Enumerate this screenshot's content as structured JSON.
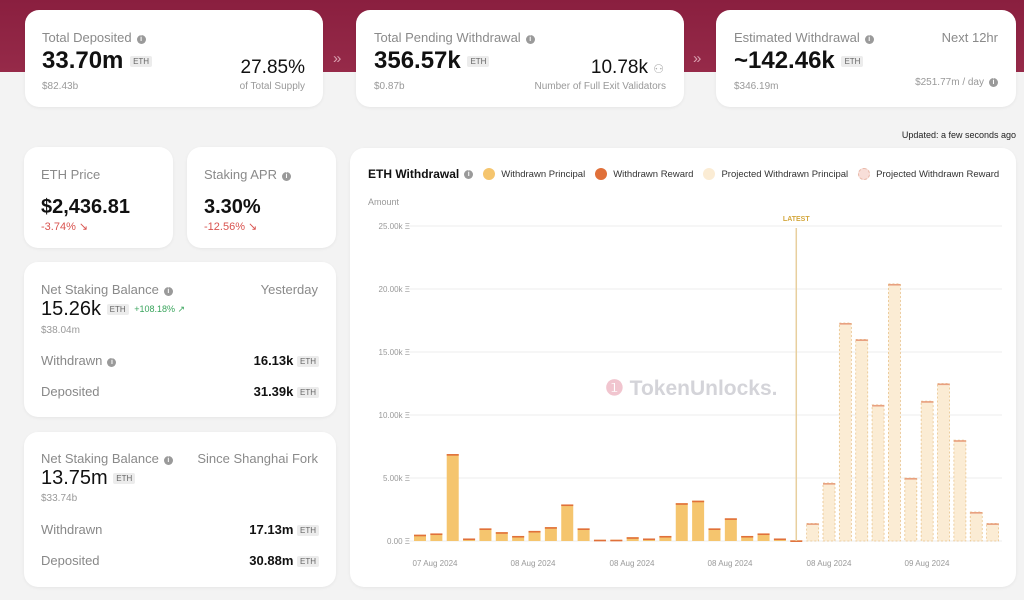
{
  "top_cards": [
    {
      "label": "Total Deposited",
      "value": "33.70m",
      "unit": "ETH",
      "usd": "$82.43b",
      "right_value": "27.85%",
      "right_caption": "of Total Supply"
    },
    {
      "label": "Total Pending Withdrawal",
      "value": "356.57k",
      "unit": "ETH",
      "usd": "$0.87b",
      "right_value": "10.78k",
      "right_caption": "Number of Full Exit Validators"
    },
    {
      "label": "Estimated Withdrawal",
      "value": "~142.46k",
      "unit": "ETH",
      "usd": "$346.19m",
      "right_label": "Next 12hr",
      "right_caption": "$251.77m / day"
    }
  ],
  "separator": "»",
  "updated": "Updated: a few seconds ago",
  "eth_price": {
    "label": "ETH Price",
    "value": "$2,436.81",
    "change": "-3.74% ↘"
  },
  "staking_apr": {
    "label": "Staking APR",
    "value": "3.30%",
    "change": "-12.56% ↘"
  },
  "net_yesterday": {
    "label": "Net Staking Balance",
    "period": "Yesterday",
    "value": "15.26k",
    "unit": "ETH",
    "change": "+108.18% ↗",
    "usd": "$38.04m",
    "withdrawn_label": "Withdrawn",
    "withdrawn": "16.13k",
    "deposited_label": "Deposited",
    "deposited": "31.39k"
  },
  "net_shanghai": {
    "label": "Net Staking Balance",
    "period": "Since Shanghai Fork",
    "value": "13.75m",
    "unit": "ETH",
    "usd": "$33.74b",
    "withdrawn_label": "Withdrawn",
    "withdrawn": "17.13m",
    "deposited_label": "Deposited",
    "deposited": "30.88m"
  },
  "chart": {
    "title": "ETH Withdrawal",
    "watermark": "TokenUnlocks.",
    "legend": [
      {
        "name": "Withdrawn Principal",
        "color": "#f5c56e"
      },
      {
        "name": "Withdrawn Reward",
        "color": "#e0703a"
      },
      {
        "name": "Projected Withdrawn Principal",
        "color": "#fbecd4"
      },
      {
        "name": "Projected Withdrawn Reward",
        "color": "#f8ded8"
      }
    ]
  },
  "chart_data": {
    "type": "bar",
    "ylabel": "Amount",
    "ylim": [
      0,
      25000
    ],
    "yticks": [
      "0.00 Ξ",
      "5.00k Ξ",
      "10.00k Ξ",
      "15.00k Ξ",
      "20.00k Ξ",
      "25.00k Ξ"
    ],
    "xticks": [
      "07 Aug 2024",
      "08 Aug 2024",
      "08 Aug 2024",
      "08 Aug 2024",
      "08 Aug 2024",
      "09 Aug 2024"
    ],
    "marker": "LATEST",
    "withdrawn": [
      500,
      600,
      6900,
      200,
      1000,
      700,
      400,
      800,
      1100,
      2900,
      1000,
      100,
      100,
      300,
      200,
      400,
      3000,
      3200,
      1000,
      1800,
      400,
      600,
      200,
      50
    ],
    "projected": [
      1400,
      4600,
      17300,
      16000,
      10800,
      20400,
      5000,
      11100,
      12500,
      8000,
      2300,
      1400
    ]
  }
}
